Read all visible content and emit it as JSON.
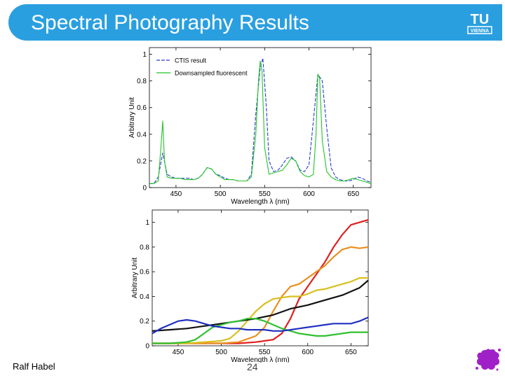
{
  "slide": {
    "title": "Spectral Photography Results",
    "author": "Ralf Habel",
    "page": "24",
    "logo_text_top": "TU",
    "logo_text_bottom": "VIENNA"
  },
  "colors": {
    "title_bar": "#2a9fe0",
    "title_text": "#ffffff",
    "splat": "#a020c8"
  },
  "chart_data": [
    {
      "type": "line",
      "ylabel": "Arbitrary Unit",
      "xlabel": "Wavelength λ (nm)",
      "xlim": [
        420,
        670
      ],
      "ylim": [
        0,
        1.05
      ],
      "xticks": [
        450,
        500,
        550,
        600,
        650
      ],
      "yticks": [
        0,
        0.2,
        0.4,
        0.6,
        0.8,
        1
      ],
      "legend_position": "top-left",
      "grid": false,
      "series": [
        {
          "name": "CTIS result",
          "color": "#2b3bd6",
          "dashed": true,
          "x": [
            420,
            425,
            430,
            435,
            440,
            445,
            450,
            455,
            460,
            465,
            470,
            475,
            480,
            485,
            490,
            495,
            500,
            505,
            510,
            515,
            520,
            525,
            530,
            535,
            540,
            545,
            548,
            552,
            555,
            560,
            565,
            570,
            575,
            580,
            585,
            590,
            595,
            600,
            605,
            610,
            615,
            620,
            625,
            630,
            635,
            640,
            645,
            650,
            655,
            660,
            665,
            670
          ],
          "y": [
            0.03,
            0.03,
            0.08,
            0.26,
            0.1,
            0.08,
            0.07,
            0.07,
            0.07,
            0.07,
            0.06,
            0.07,
            0.1,
            0.15,
            0.14,
            0.1,
            0.09,
            0.07,
            0.06,
            0.06,
            0.05,
            0.05,
            0.05,
            0.1,
            0.55,
            0.9,
            0.97,
            0.6,
            0.2,
            0.12,
            0.13,
            0.17,
            0.22,
            0.23,
            0.2,
            0.13,
            0.12,
            0.17,
            0.5,
            0.85,
            0.8,
            0.45,
            0.15,
            0.08,
            0.06,
            0.05,
            0.05,
            0.06,
            0.08,
            0.07,
            0.05,
            0.04
          ]
        },
        {
          "name": "Downsampled fluorescent",
          "color": "#22c427",
          "dashed": false,
          "x": [
            420,
            425,
            430,
            433,
            435,
            437,
            440,
            445,
            450,
            455,
            460,
            465,
            470,
            475,
            480,
            485,
            490,
            495,
            500,
            505,
            510,
            515,
            520,
            525,
            530,
            535,
            540,
            543,
            545,
            547,
            550,
            555,
            560,
            565,
            570,
            575,
            580,
            585,
            590,
            595,
            600,
            605,
            608,
            610,
            612,
            615,
            620,
            625,
            630,
            635,
            640,
            645,
            650,
            655,
            660,
            665,
            670
          ],
          "y": [
            0.03,
            0.03,
            0.05,
            0.3,
            0.5,
            0.2,
            0.08,
            0.07,
            0.07,
            0.07,
            0.06,
            0.06,
            0.06,
            0.07,
            0.1,
            0.15,
            0.14,
            0.1,
            0.08,
            0.06,
            0.06,
            0.06,
            0.05,
            0.05,
            0.05,
            0.08,
            0.4,
            0.8,
            0.95,
            0.88,
            0.3,
            0.1,
            0.11,
            0.12,
            0.13,
            0.17,
            0.22,
            0.2,
            0.12,
            0.09,
            0.08,
            0.1,
            0.4,
            0.85,
            0.82,
            0.35,
            0.12,
            0.08,
            0.06,
            0.05,
            0.05,
            0.06,
            0.07,
            0.06,
            0.05,
            0.04,
            0.03
          ]
        }
      ]
    },
    {
      "type": "line",
      "ylabel": "Arbitrary Unit",
      "xlabel": "Wavelength λ (nm)",
      "xlim": [
        420,
        670
      ],
      "ylim": [
        0,
        1.1
      ],
      "xticks": [
        450,
        500,
        550,
        600,
        650
      ],
      "yticks": [
        0,
        0.2,
        0.4,
        0.6,
        0.8,
        1
      ],
      "grid": false,
      "series": [
        {
          "color": "#e02020",
          "x": [
            420,
            440,
            460,
            480,
            500,
            520,
            540,
            560,
            570,
            580,
            590,
            600,
            610,
            620,
            630,
            640,
            650,
            660,
            670
          ],
          "y": [
            0.02,
            0.02,
            0.02,
            0.02,
            0.02,
            0.02,
            0.03,
            0.05,
            0.1,
            0.22,
            0.38,
            0.48,
            0.58,
            0.68,
            0.8,
            0.9,
            0.98,
            1.0,
            1.02
          ]
        },
        {
          "color": "#e89020",
          "x": [
            420,
            440,
            460,
            480,
            500,
            520,
            540,
            550,
            560,
            570,
            580,
            590,
            600,
            610,
            620,
            630,
            640,
            650,
            660,
            670
          ],
          "y": [
            0.02,
            0.02,
            0.02,
            0.02,
            0.02,
            0.03,
            0.08,
            0.15,
            0.28,
            0.4,
            0.48,
            0.5,
            0.55,
            0.6,
            0.65,
            0.72,
            0.78,
            0.8,
            0.79,
            0.8
          ]
        },
        {
          "color": "#d8c020",
          "x": [
            420,
            440,
            460,
            480,
            500,
            510,
            520,
            530,
            540,
            550,
            560,
            570,
            580,
            590,
            600,
            610,
            620,
            630,
            640,
            650,
            660,
            670
          ],
          "y": [
            0.02,
            0.02,
            0.02,
            0.03,
            0.04,
            0.06,
            0.12,
            0.2,
            0.28,
            0.34,
            0.38,
            0.39,
            0.4,
            0.4,
            0.42,
            0.45,
            0.46,
            0.48,
            0.5,
            0.52,
            0.55,
            0.55
          ]
        },
        {
          "color": "#111111",
          "x": [
            420,
            440,
            460,
            480,
            500,
            520,
            540,
            560,
            580,
            600,
            620,
            640,
            660,
            670
          ],
          "y": [
            0.12,
            0.13,
            0.14,
            0.16,
            0.18,
            0.2,
            0.22,
            0.25,
            0.3,
            0.33,
            0.37,
            0.41,
            0.47,
            0.53
          ]
        },
        {
          "color": "#30c030",
          "x": [
            420,
            440,
            460,
            470,
            480,
            490,
            500,
            510,
            520,
            530,
            540,
            550,
            560,
            570,
            580,
            590,
            600,
            610,
            620,
            630,
            640,
            650,
            660,
            670
          ],
          "y": [
            0.02,
            0.02,
            0.03,
            0.05,
            0.1,
            0.15,
            0.17,
            0.19,
            0.2,
            0.22,
            0.22,
            0.2,
            0.17,
            0.14,
            0.12,
            0.1,
            0.09,
            0.08,
            0.08,
            0.09,
            0.1,
            0.11,
            0.11,
            0.11
          ]
        },
        {
          "color": "#2030c0",
          "x": [
            420,
            430,
            440,
            450,
            460,
            470,
            480,
            490,
            500,
            510,
            520,
            530,
            540,
            550,
            560,
            570,
            580,
            590,
            600,
            610,
            620,
            630,
            640,
            650,
            660,
            670
          ],
          "y": [
            0.1,
            0.14,
            0.17,
            0.2,
            0.21,
            0.2,
            0.18,
            0.16,
            0.15,
            0.14,
            0.14,
            0.13,
            0.13,
            0.13,
            0.12,
            0.12,
            0.13,
            0.14,
            0.15,
            0.16,
            0.17,
            0.18,
            0.18,
            0.18,
            0.2,
            0.23
          ]
        }
      ]
    }
  ]
}
